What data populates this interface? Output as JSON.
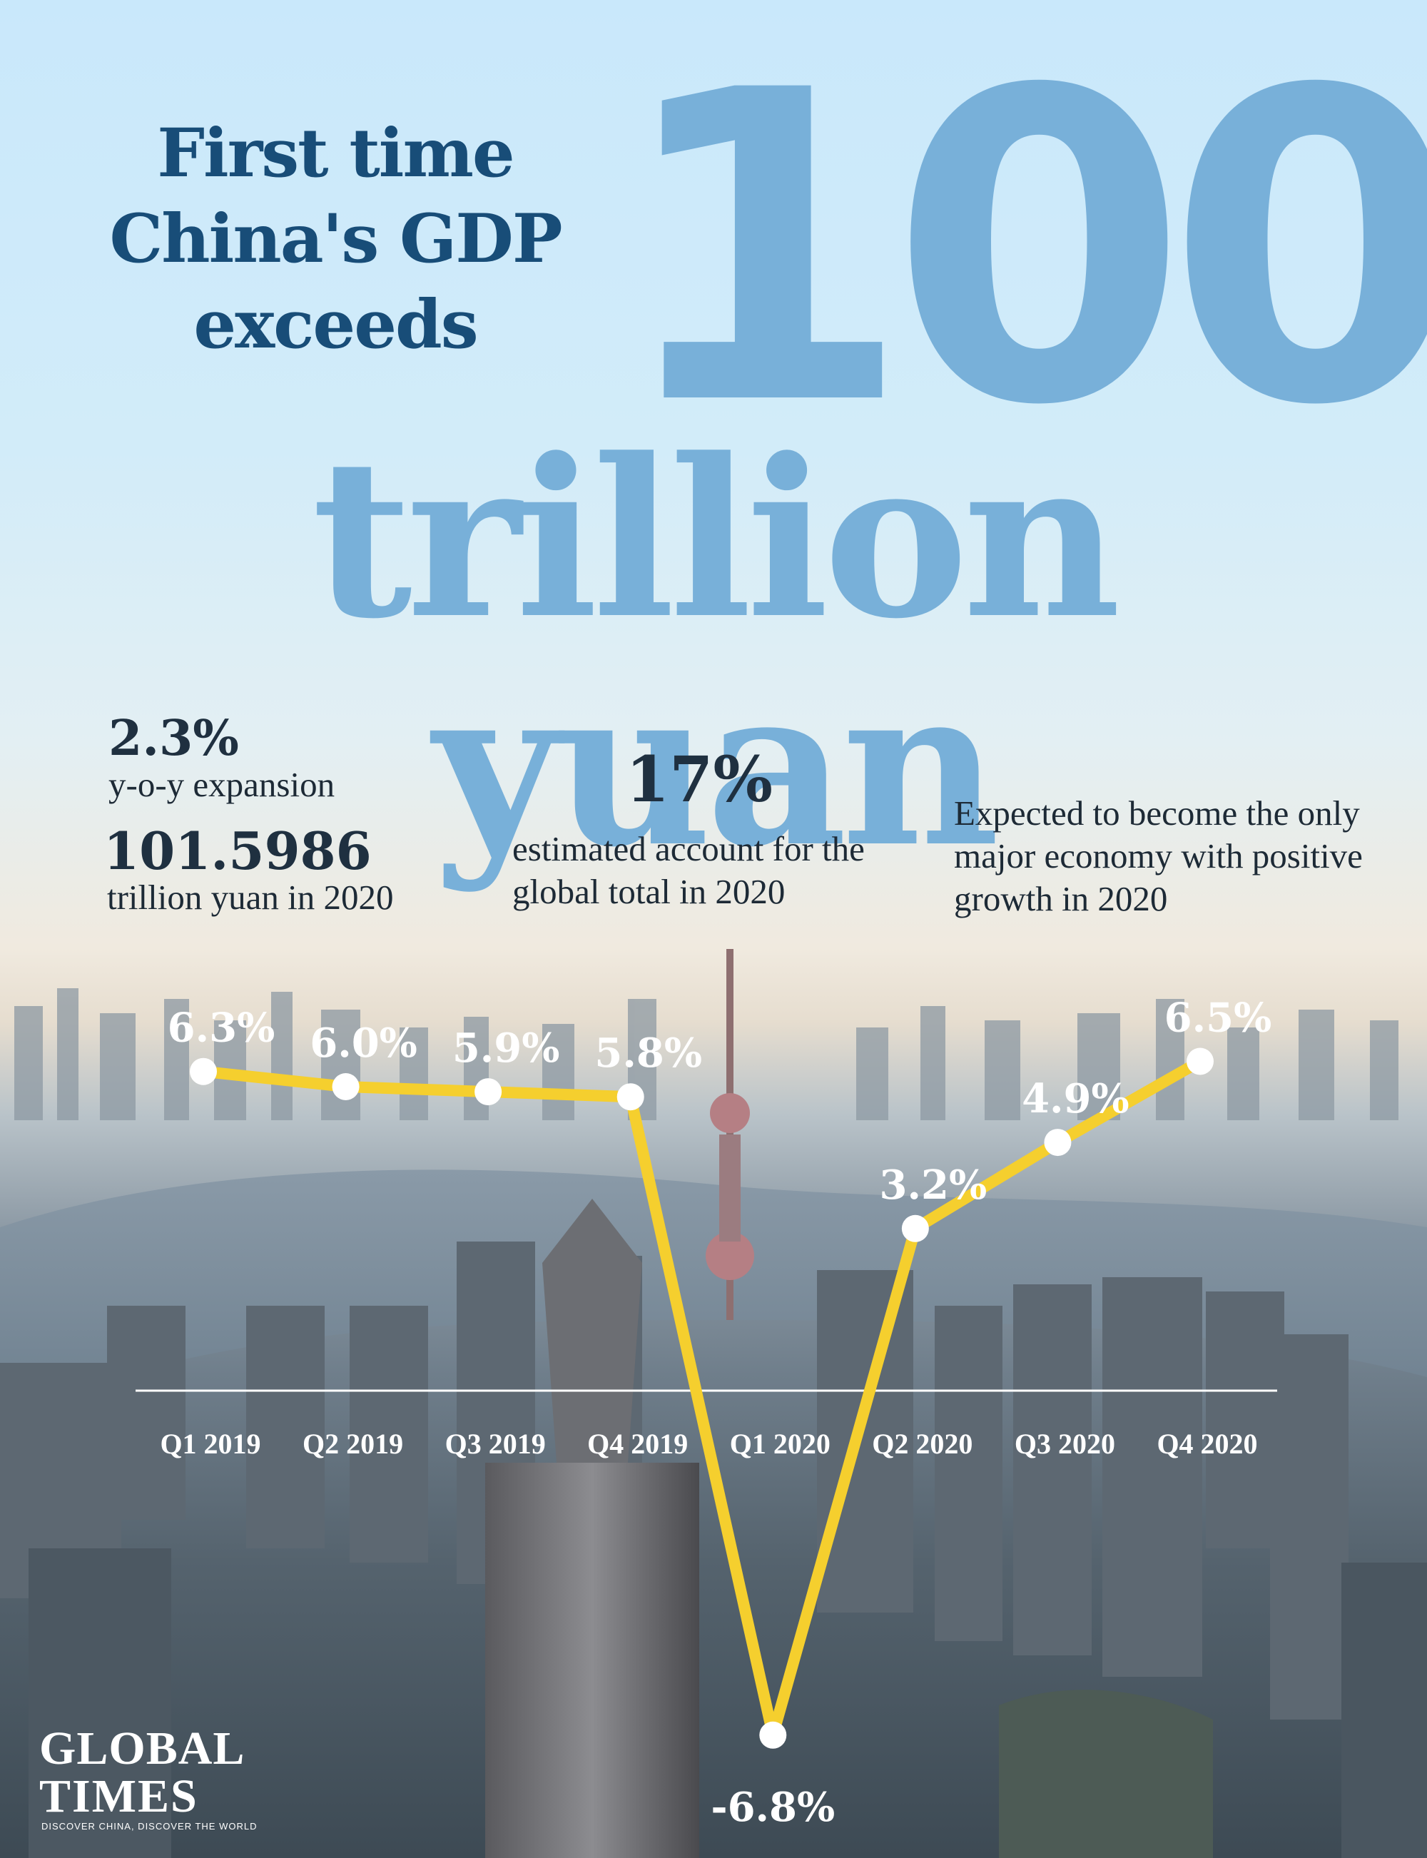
{
  "headline": {
    "line1": "First time",
    "line2": "China's GDP",
    "line3": "exceeds",
    "big_number": "100",
    "big_unit": "trillion yuan"
  },
  "stats": {
    "growth_value": "2.3%",
    "growth_label": "y-o-y expansion",
    "gdp_value": "101.5986",
    "gdp_label": "trillion yuan in 2020",
    "share_value": "17%",
    "share_label": "estimated account for the global total in 2020",
    "outlook_label": "Expected to become the only major economy with positive growth in 2020"
  },
  "colors": {
    "headline": "#184d78",
    "big_text": "#78b0d9",
    "line": "#f5cf2e",
    "marker": "#ffffff",
    "axis": "#ffffff"
  },
  "chart_data": {
    "type": "line",
    "title": "",
    "xlabel": "",
    "ylabel": "",
    "categories": [
      "Q1 2019",
      "Q2 2019",
      "Q3 2019",
      "Q4 2019",
      "Q1 2020",
      "Q2 2020",
      "Q3 2020",
      "Q4 2020"
    ],
    "series": [
      {
        "values": [
          6.3,
          6.0,
          5.9,
          5.8,
          -6.8,
          3.2,
          4.9,
          6.5
        ]
      }
    ],
    "data_labels": [
      "6.3%",
      "6.0%",
      "5.9%",
      "5.8%",
      "-6.8%",
      "3.2%",
      "4.9%",
      "6.5%"
    ],
    "ylim": [
      -7,
      7
    ],
    "grid": false,
    "legend": "none"
  },
  "logo": {
    "line1": "GLOBAL",
    "line2": "TIMES",
    "tagline": "DISCOVER CHINA, DISCOVER THE WORLD"
  }
}
